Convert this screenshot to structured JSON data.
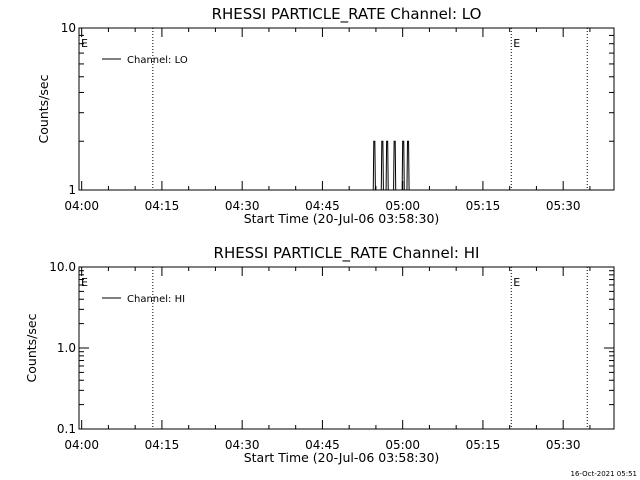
{
  "timestamp": "16-Oct-2021 05:51",
  "colors": {
    "background": "#ffffff",
    "foreground": "#000000"
  },
  "chart_data": [
    {
      "type": "line",
      "title": "RHESSI PARTICLE_RATE Channel: LO",
      "xlabel": "Start Time (20-Jul-06 03:58:30)",
      "ylabel": "Counts/sec",
      "x_unit": "minutes after 04:00",
      "xlim": [
        -0.5,
        99.5
      ],
      "yscale": "log",
      "ylim": [
        1,
        10
      ],
      "x_ticks": [
        0,
        15,
        30,
        45,
        60,
        75,
        90
      ],
      "x_tick_labels": [
        "04:00",
        "04:15",
        "04:30",
        "04:45",
        "05:00",
        "05:15",
        "05:30"
      ],
      "y_ticks": [
        1,
        10
      ],
      "y_tick_labels": [
        "1",
        "10"
      ],
      "legend": {
        "position": "top-left",
        "entries": [
          "Channel: LO"
        ]
      },
      "vertical_dotted_lines": [
        13.3,
        80.3,
        94.5
      ],
      "flags": [
        {
          "text": "E",
          "x": -0.5
        },
        {
          "text": "E",
          "x": 80.3
        }
      ],
      "series": [
        {
          "name": "Channel: LO",
          "points": [
            [
              54.5,
              1
            ],
            [
              54.6,
              2
            ],
            [
              54.8,
              2
            ],
            [
              54.9,
              1
            ],
            [
              56.0,
              1
            ],
            [
              56.1,
              2
            ],
            [
              56.3,
              2
            ],
            [
              56.4,
              1
            ],
            [
              56.9,
              1
            ],
            [
              57.0,
              2
            ],
            [
              57.2,
              2
            ],
            [
              57.3,
              1
            ],
            [
              58.3,
              1
            ],
            [
              58.4,
              2
            ],
            [
              58.6,
              2
            ],
            [
              58.7,
              1
            ],
            [
              59.9,
              1
            ],
            [
              60.0,
              2
            ],
            [
              60.2,
              2
            ],
            [
              60.3,
              1
            ],
            [
              60.8,
              1
            ],
            [
              60.9,
              2
            ],
            [
              61.1,
              2
            ],
            [
              61.2,
              1
            ]
          ]
        }
      ]
    },
    {
      "type": "line",
      "title": "RHESSI PARTICLE_RATE Channel: HI",
      "xlabel": "Start Time (20-Jul-06 03:58:30)",
      "ylabel": "Counts/sec",
      "x_unit": "minutes after 04:00",
      "xlim": [
        -0.5,
        99.5
      ],
      "yscale": "log",
      "ylim": [
        0.1,
        10
      ],
      "x_ticks": [
        0,
        15,
        30,
        45,
        60,
        75,
        90
      ],
      "x_tick_labels": [
        "04:00",
        "04:15",
        "04:30",
        "04:45",
        "05:00",
        "05:15",
        "05:30"
      ],
      "y_ticks": [
        0.1,
        1,
        10
      ],
      "y_tick_labels": [
        "0.1",
        "1.0",
        "10.0"
      ],
      "legend": {
        "position": "top-left",
        "entries": [
          "Channel: HI"
        ]
      },
      "vertical_dotted_lines": [
        13.3,
        80.3,
        94.5
      ],
      "flags": [
        {
          "text": "E",
          "x": -0.5
        },
        {
          "text": "E",
          "x": 80.3
        }
      ],
      "series": [
        {
          "name": "Channel: HI",
          "points": []
        }
      ]
    }
  ]
}
